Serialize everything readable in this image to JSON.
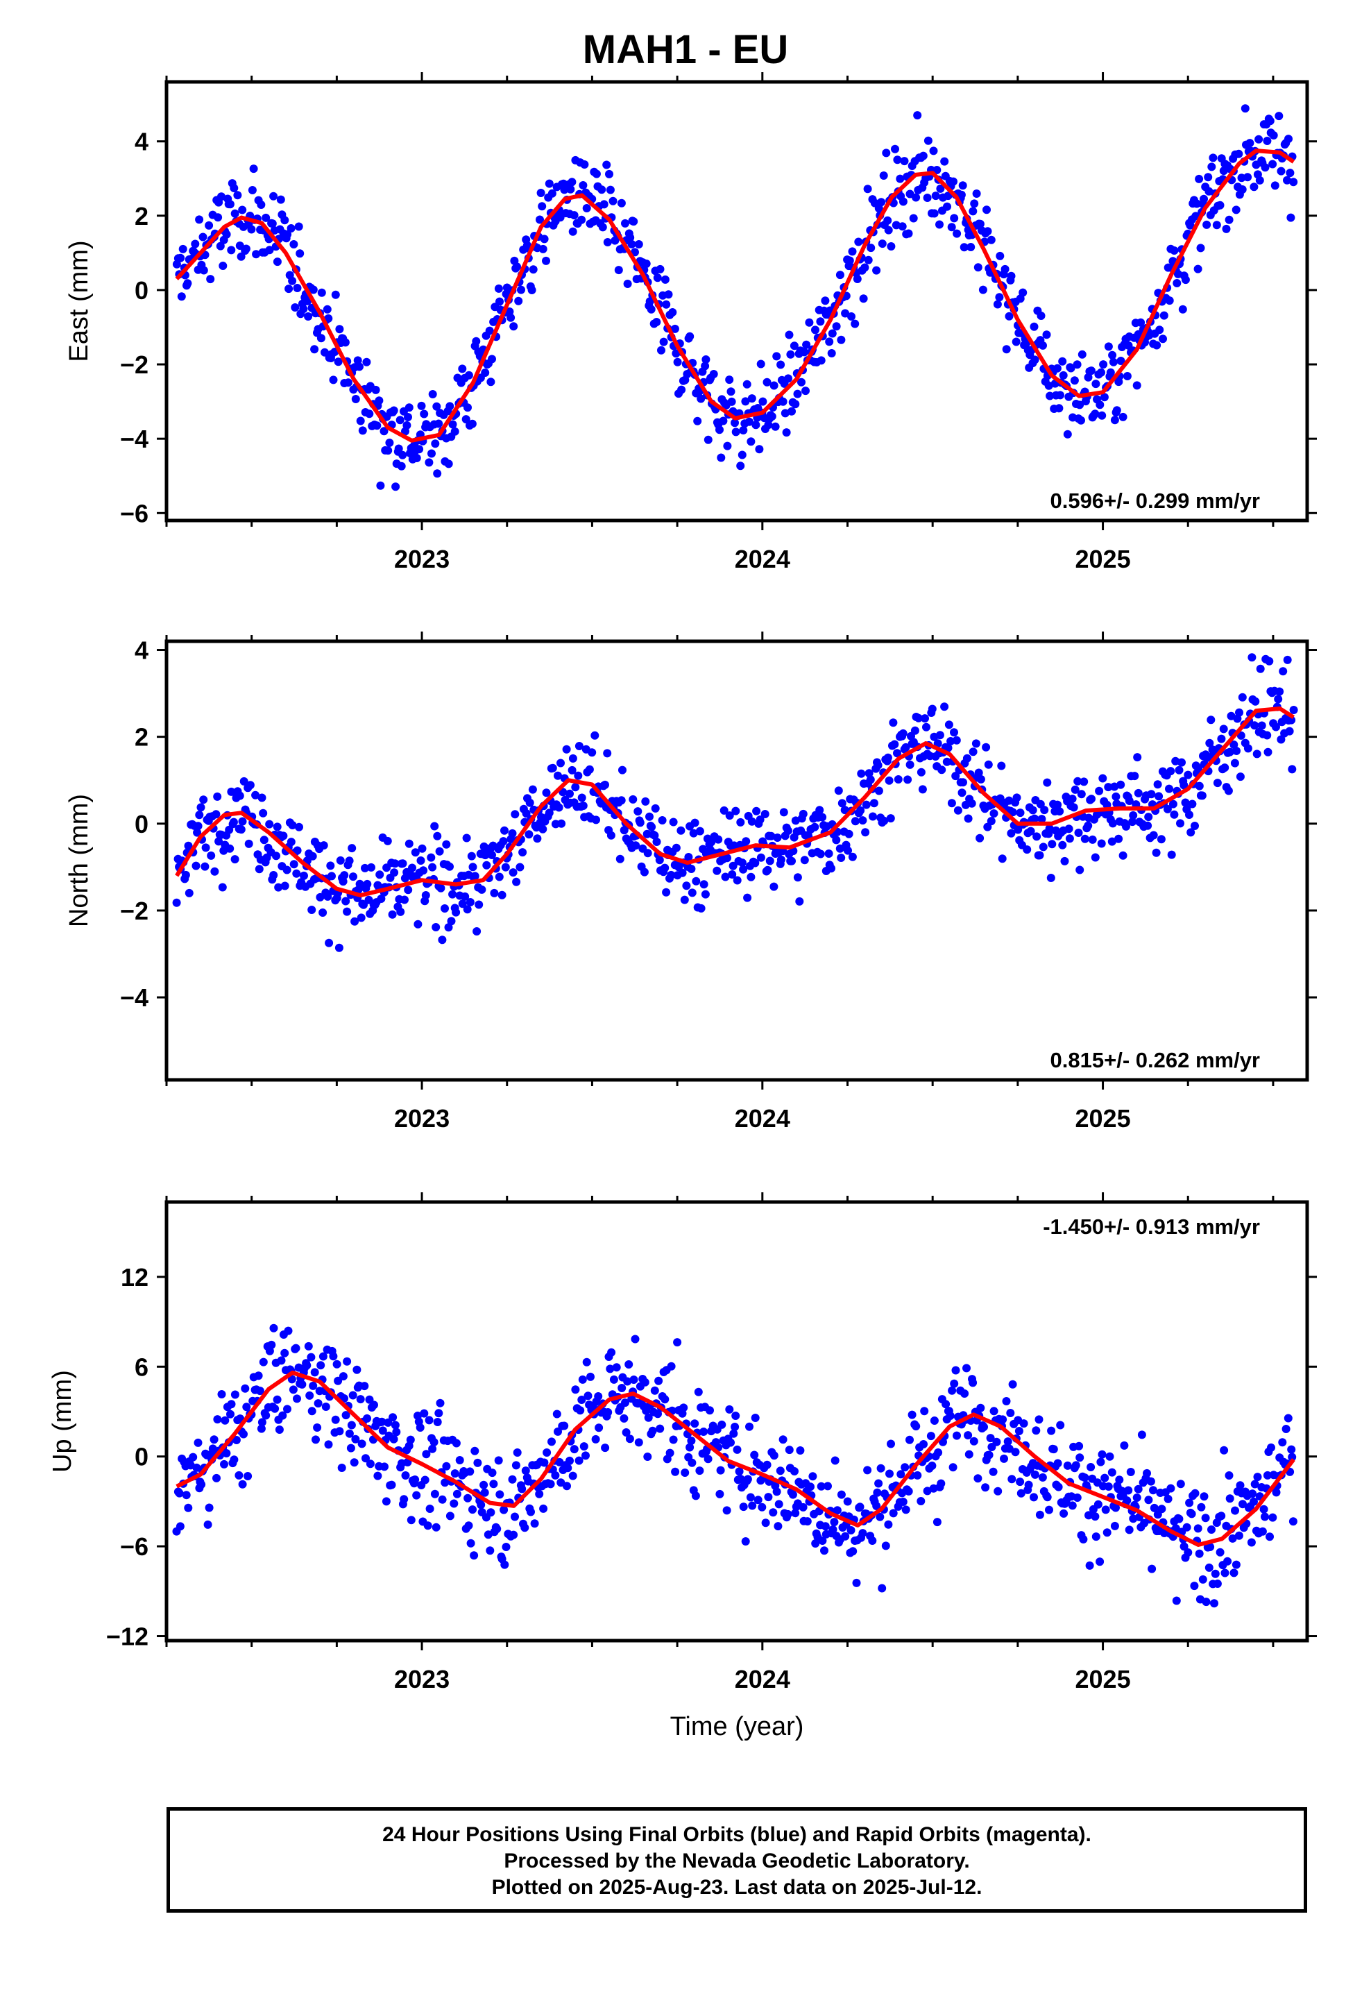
{
  "figure": {
    "title": "MAH1 - EU",
    "footer_lines": [
      "24 Hour Positions Using Final Orbits (blue) and Rapid Orbits (magenta).",
      "Processed by the Nevada Geodetic Laboratory.",
      "Plotted on 2025-Aug-23. Last data on 2025-Jul-12."
    ]
  },
  "colors": {
    "points": "#0000ff",
    "model": "#ff0000",
    "frame": "#000000"
  },
  "chart_data": [
    {
      "type": "scatter",
      "name": "east",
      "ylabel": "East (mm)",
      "xlabel": "",
      "xlim": [
        2022.25,
        2025.6
      ],
      "ylim": [
        -6.2,
        5.6
      ],
      "x_ticks": [
        2023,
        2024,
        2025
      ],
      "y_ticks": [
        -6,
        -4,
        -2,
        0,
        2,
        4
      ],
      "y_tick_labels": [
        "−6",
        "−4",
        "−2",
        "0",
        "2",
        "4"
      ],
      "rate_text": "0.596+/- 0.299 mm/yr",
      "rate_position": "bottom-right",
      "model_points": [
        [
          2022.28,
          0.3
        ],
        [
          2022.35,
          1.0
        ],
        [
          2022.42,
          1.7
        ],
        [
          2022.47,
          1.95
        ],
        [
          2022.53,
          1.8
        ],
        [
          2022.6,
          1.0
        ],
        [
          2022.7,
          -0.6
        ],
        [
          2022.8,
          -2.4
        ],
        [
          2022.9,
          -3.7
        ],
        [
          2022.97,
          -4.05
        ],
        [
          2023.05,
          -3.9
        ],
        [
          2023.15,
          -2.5
        ],
        [
          2023.25,
          -0.4
        ],
        [
          2023.35,
          1.7
        ],
        [
          2023.42,
          2.45
        ],
        [
          2023.47,
          2.55
        ],
        [
          2023.55,
          1.9
        ],
        [
          2023.65,
          0.4
        ],
        [
          2023.75,
          -1.5
        ],
        [
          2023.85,
          -3.0
        ],
        [
          2023.92,
          -3.45
        ],
        [
          2024.0,
          -3.3
        ],
        [
          2024.1,
          -2.4
        ],
        [
          2024.2,
          -0.8
        ],
        [
          2024.3,
          1.2
        ],
        [
          2024.38,
          2.5
        ],
        [
          2024.45,
          3.1
        ],
        [
          2024.5,
          3.15
        ],
        [
          2024.57,
          2.5
        ],
        [
          2024.65,
          1.1
        ],
        [
          2024.75,
          -0.8
        ],
        [
          2024.85,
          -2.3
        ],
        [
          2024.93,
          -2.85
        ],
        [
          2025.0,
          -2.75
        ],
        [
          2025.1,
          -1.6
        ],
        [
          2025.2,
          0.4
        ],
        [
          2025.3,
          2.2
        ],
        [
          2025.4,
          3.4
        ],
        [
          2025.45,
          3.75
        ],
        [
          2025.52,
          3.7
        ],
        [
          2025.56,
          3.45
        ]
      ]
    },
    {
      "type": "scatter",
      "name": "north",
      "ylabel": "North (mm)",
      "xlabel": "",
      "xlim": [
        2022.25,
        2025.6
      ],
      "ylim": [
        -5.9,
        4.2
      ],
      "x_ticks": [
        2023,
        2024,
        2025
      ],
      "y_ticks": [
        -4,
        -2,
        0,
        2,
        4
      ],
      "y_tick_labels": [
        "−4",
        "−2",
        "0",
        "2",
        "4"
      ],
      "rate_text": "0.815+/- 0.262 mm/yr",
      "rate_position": "bottom-right",
      "model_points": [
        [
          2022.28,
          -1.2
        ],
        [
          2022.35,
          -0.3
        ],
        [
          2022.42,
          0.2
        ],
        [
          2022.47,
          0.25
        ],
        [
          2022.55,
          -0.2
        ],
        [
          2022.65,
          -0.9
        ],
        [
          2022.75,
          -1.5
        ],
        [
          2022.82,
          -1.65
        ],
        [
          2022.9,
          -1.5
        ],
        [
          2023.0,
          -1.3
        ],
        [
          2023.1,
          -1.4
        ],
        [
          2023.18,
          -1.3
        ],
        [
          2023.25,
          -0.7
        ],
        [
          2023.35,
          0.4
        ],
        [
          2023.43,
          1.0
        ],
        [
          2023.5,
          0.9
        ],
        [
          2023.6,
          0.0
        ],
        [
          2023.7,
          -0.7
        ],
        [
          2023.78,
          -0.9
        ],
        [
          2023.88,
          -0.7
        ],
        [
          2023.98,
          -0.5
        ],
        [
          2024.08,
          -0.55
        ],
        [
          2024.2,
          -0.2
        ],
        [
          2024.3,
          0.6
        ],
        [
          2024.4,
          1.5
        ],
        [
          2024.48,
          1.85
        ],
        [
          2024.55,
          1.6
        ],
        [
          2024.65,
          0.7
        ],
        [
          2024.75,
          0.0
        ],
        [
          2024.85,
          0.0
        ],
        [
          2024.95,
          0.3
        ],
        [
          2025.05,
          0.35
        ],
        [
          2025.15,
          0.35
        ],
        [
          2025.25,
          0.8
        ],
        [
          2025.35,
          1.7
        ],
        [
          2025.45,
          2.6
        ],
        [
          2025.52,
          2.65
        ],
        [
          2025.56,
          2.45
        ]
      ]
    },
    {
      "type": "scatter",
      "name": "up",
      "ylabel": "Up (mm)",
      "xlabel": "Time (year)",
      "xlim": [
        2022.25,
        2025.6
      ],
      "ylim": [
        -12.3,
        17
      ],
      "x_ticks": [
        2023,
        2024,
        2025
      ],
      "y_ticks": [
        -12,
        -6,
        0,
        6,
        12
      ],
      "y_tick_labels": [
        "−12",
        "−6",
        "0",
        "6",
        "12"
      ],
      "rate_text": "-1.450+/- 0.913 mm/yr",
      "rate_position": "top-right",
      "model_points": [
        [
          2022.28,
          -2.0
        ],
        [
          2022.35,
          -1.2
        ],
        [
          2022.45,
          1.5
        ],
        [
          2022.55,
          4.5
        ],
        [
          2022.62,
          5.6
        ],
        [
          2022.7,
          5.0
        ],
        [
          2022.8,
          2.8
        ],
        [
          2022.9,
          0.6
        ],
        [
          2023.0,
          -0.5
        ],
        [
          2023.1,
          -1.7
        ],
        [
          2023.2,
          -3.1
        ],
        [
          2023.27,
          -3.3
        ],
        [
          2023.35,
          -1.5
        ],
        [
          2023.45,
          1.8
        ],
        [
          2023.55,
          3.8
        ],
        [
          2023.62,
          4.2
        ],
        [
          2023.7,
          3.3
        ],
        [
          2023.8,
          1.5
        ],
        [
          2023.9,
          -0.3
        ],
        [
          2024.0,
          -1.2
        ],
        [
          2024.1,
          -2.2
        ],
        [
          2024.2,
          -3.8
        ],
        [
          2024.28,
          -4.6
        ],
        [
          2024.35,
          -3.5
        ],
        [
          2024.45,
          -0.6
        ],
        [
          2024.55,
          2.0
        ],
        [
          2024.62,
          2.8
        ],
        [
          2024.7,
          2.0
        ],
        [
          2024.8,
          0.0
        ],
        [
          2024.9,
          -1.8
        ],
        [
          2025.0,
          -2.7
        ],
        [
          2025.1,
          -3.6
        ],
        [
          2025.2,
          -5.0
        ],
        [
          2025.28,
          -5.9
        ],
        [
          2025.35,
          -5.5
        ],
        [
          2025.45,
          -3.5
        ],
        [
          2025.52,
          -1.4
        ],
        [
          2025.56,
          -0.2
        ]
      ]
    }
  ]
}
